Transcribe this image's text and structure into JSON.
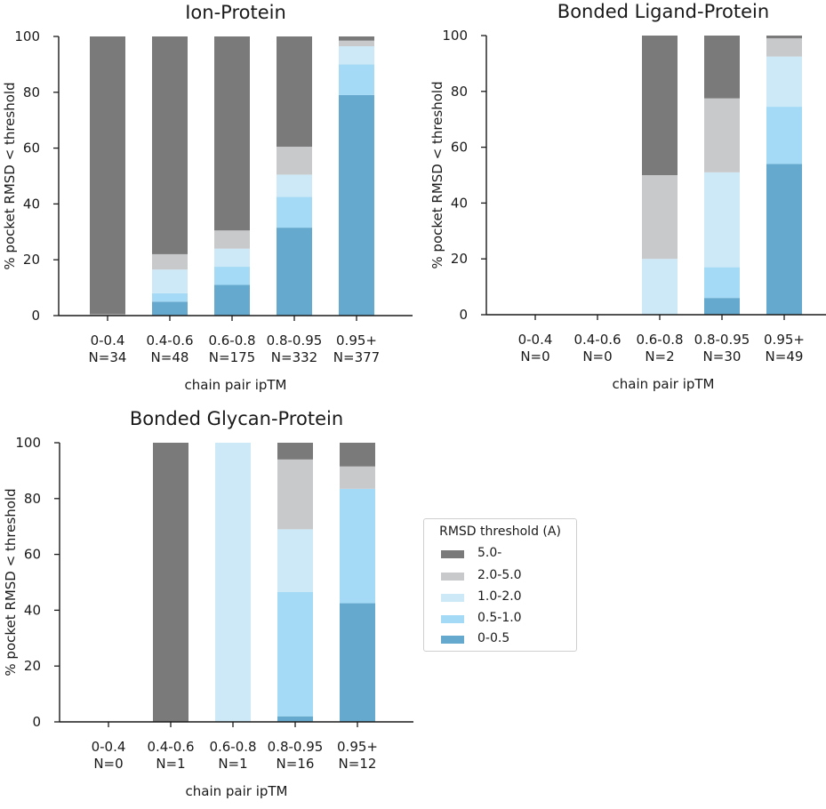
{
  "colors": {
    "5.0-": "#7a7a7a",
    "2.0-5.0": "#c8c9cb",
    "1.0-2.0": "#cde8f7",
    "0.5-1.0": "#a4daf5",
    "0-0.5": "#66a9cf",
    "axis": "#1a1a1a"
  },
  "legend": {
    "title": "RMSD threshold (A)",
    "entries": [
      "5.0-",
      "2.0-5.0",
      "1.0-2.0",
      "0.5-1.0",
      "0-0.5"
    ]
  },
  "chart_data": [
    {
      "type": "bar",
      "stacked": true,
      "title": "Ion-Protein",
      "xlabel": "chain pair ipTM",
      "ylabel": "% pocket RMSD < threshold",
      "ylim": [
        0,
        100
      ],
      "yticks": [
        0,
        20,
        40,
        60,
        80,
        100
      ],
      "categories": [
        "0-0.4",
        "0.4-0.6",
        "0.6-0.8",
        "0.8-0.95",
        "0.95+"
      ],
      "counts": [
        "N=34",
        "N=48",
        "N=175",
        "N=332",
        "N=377"
      ],
      "series": [
        {
          "name": "0-0.5",
          "values": [
            0,
            5,
            11,
            31.5,
            79
          ]
        },
        {
          "name": "0.5-1.0",
          "values": [
            0,
            3,
            6.5,
            11,
            11
          ]
        },
        {
          "name": "1.0-2.0",
          "values": [
            0,
            8.5,
            6.5,
            8,
            6.5
          ]
        },
        {
          "name": "2.0-5.0",
          "values": [
            0.5,
            5.5,
            6.5,
            10,
            2
          ]
        },
        {
          "name": "5.0-",
          "values": [
            99.5,
            78,
            69.5,
            39.5,
            1.5
          ]
        }
      ]
    },
    {
      "type": "bar",
      "stacked": true,
      "title": "Bonded Ligand-Protein",
      "xlabel": "chain pair ipTM",
      "ylabel": "% pocket RMSD < threshold",
      "ylim": [
        0,
        100
      ],
      "yticks": [
        0,
        20,
        40,
        60,
        80,
        100
      ],
      "categories": [
        "0-0.4",
        "0.4-0.6",
        "0.6-0.8",
        "0.8-0.95",
        "0.95+"
      ],
      "counts": [
        "N=0",
        "N=0",
        "N=2",
        "N=30",
        "N=49"
      ],
      "series": [
        {
          "name": "0-0.5",
          "values": [
            0,
            0,
            0,
            6,
            54
          ]
        },
        {
          "name": "0.5-1.0",
          "values": [
            0,
            0,
            0,
            11,
            20.5
          ]
        },
        {
          "name": "1.0-2.0",
          "values": [
            0,
            0,
            20,
            34,
            18
          ]
        },
        {
          "name": "2.0-5.0",
          "values": [
            0,
            0,
            30,
            26.5,
            6.5
          ]
        },
        {
          "name": "5.0-",
          "values": [
            0,
            0,
            50,
            22.5,
            1
          ]
        }
      ]
    },
    {
      "type": "bar",
      "stacked": true,
      "title": "Bonded Glycan-Protein",
      "xlabel": "chain pair ipTM",
      "ylabel": "% pocket RMSD < threshold",
      "ylim": [
        0,
        100
      ],
      "yticks": [
        0,
        20,
        40,
        60,
        80,
        100
      ],
      "categories": [
        "0-0.4",
        "0.4-0.6",
        "0.6-0.8",
        "0.8-0.95",
        "0.95+"
      ],
      "counts": [
        "N=0",
        "N=1",
        "N=1",
        "N=16",
        "N=12"
      ],
      "series": [
        {
          "name": "0-0.5",
          "values": [
            0,
            0,
            0,
            2,
            42.5
          ]
        },
        {
          "name": "0.5-1.0",
          "values": [
            0,
            0,
            0,
            44.5,
            41
          ]
        },
        {
          "name": "1.0-2.0",
          "values": [
            0,
            0,
            100,
            22.5,
            0
          ]
        },
        {
          "name": "2.0-5.0",
          "values": [
            0,
            0,
            0,
            25,
            8
          ]
        },
        {
          "name": "5.0-",
          "values": [
            0,
            100,
            0,
            6,
            8.5
          ]
        }
      ]
    }
  ]
}
